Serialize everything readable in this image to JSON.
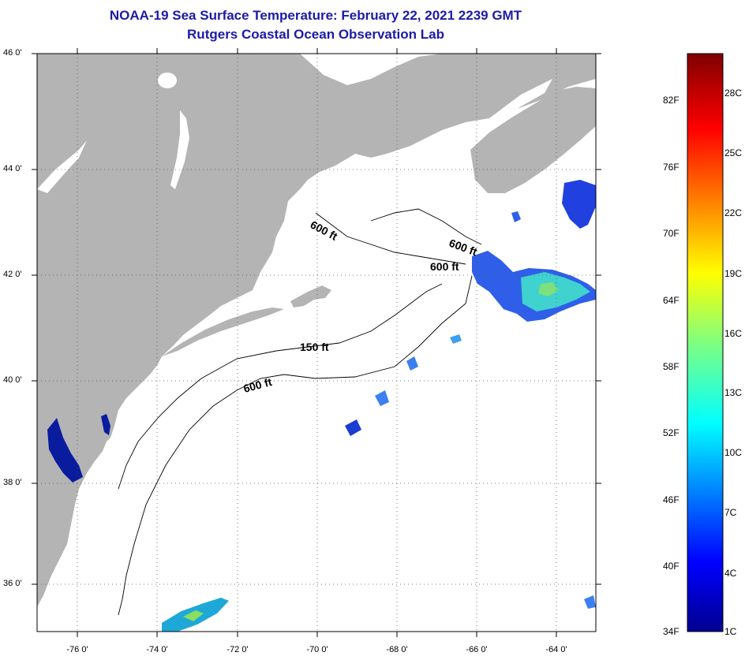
{
  "title": "NOAA-19 Sea Surface Temperature:  February 22, 2021 2239 GMT",
  "subtitle": "Rutgers Coastal Ocean Observation Lab",
  "lat_labels": [
    "46 0'",
    "44 0'",
    "42 0'",
    "40 0'",
    "38 0'",
    "36 0'"
  ],
  "lon_labels": [
    "-76 0'",
    "-74 0'",
    "-72 0'",
    "-70 0'",
    "-68 0'",
    "-66 0'",
    "-64 0'"
  ],
  "contour_labels": {
    "c600a": "600 ft",
    "c600b": "600 ft",
    "c600c": "600 ft",
    "c150": "150 ft",
    "c600d": "600 ft"
  },
  "colorbar": {
    "f_labels": [
      "82F",
      "76F",
      "70F",
      "64F",
      "58F",
      "52F",
      "46F",
      "40F",
      "34F"
    ],
    "c_labels": [
      "28C",
      "25C",
      "22C",
      "19C",
      "16C",
      "13C",
      "10C",
      "7C",
      "4C",
      "1C"
    ]
  },
  "colors": {
    "land": "#b4b4b4",
    "ocean_cloud": "#ffffff",
    "title": "#1b1ba8"
  }
}
